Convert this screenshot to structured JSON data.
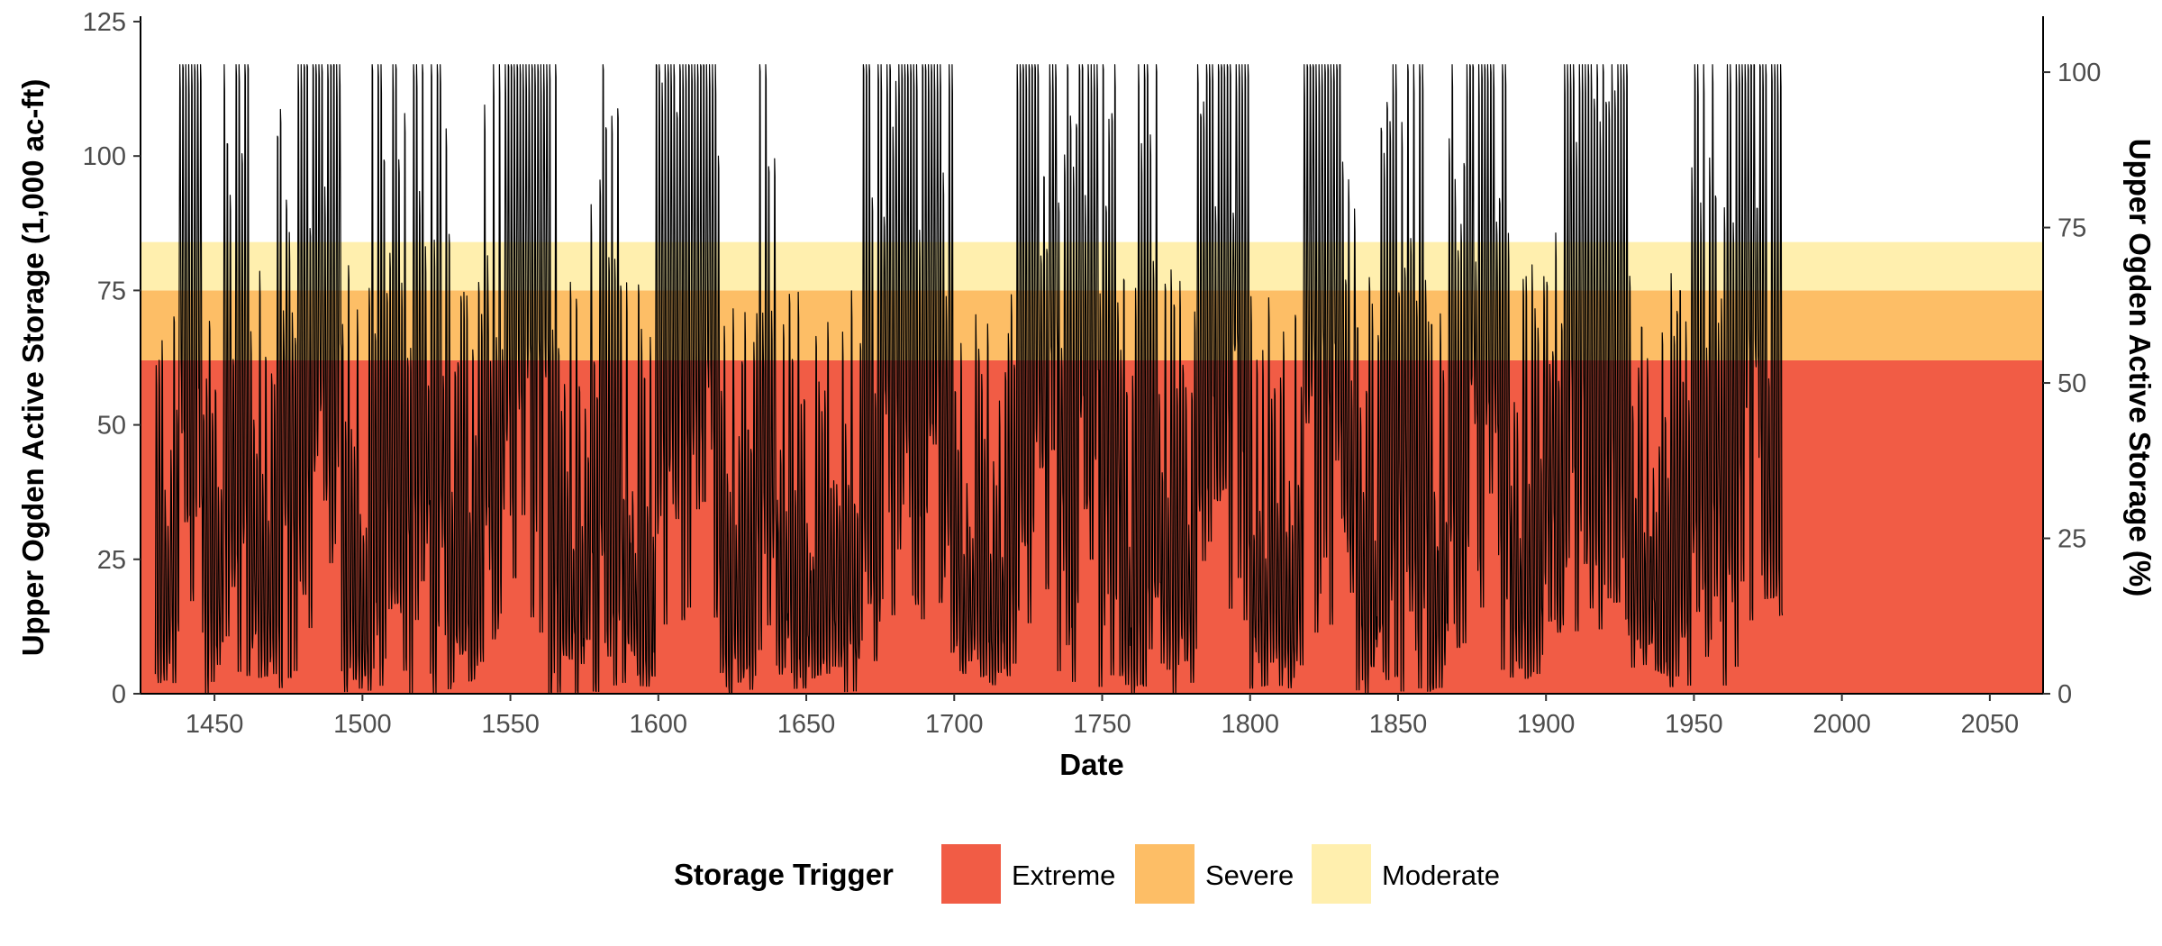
{
  "chart_data": {
    "type": "area",
    "xlabel": "Date",
    "ylabel": "Upper Ogden Active Storage (1,000 ac-ft)",
    "y2label": "Upper Ogden Active Storage (%)",
    "xlim": [
      1425,
      2068
    ],
    "ylim": [
      0,
      126
    ],
    "y2lim": [
      0,
      109
    ],
    "x_ticks": [
      1450,
      1500,
      1550,
      1600,
      1650,
      1700,
      1750,
      1800,
      1850,
      1900,
      1950,
      2000,
      2050
    ],
    "y_ticks": [
      0,
      25,
      50,
      75,
      100,
      125
    ],
    "y2_ticks": [
      0,
      25,
      50,
      75,
      100
    ],
    "grid": false,
    "legend": {
      "title": "Storage Trigger",
      "position": "bottom",
      "entries": [
        {
          "name": "Extreme",
          "color": "#F15C45"
        },
        {
          "name": "Severe",
          "color": "#FDBE66"
        },
        {
          "name": "Moderate",
          "color": "#FFEFAE"
        }
      ]
    },
    "bands": [
      {
        "name": "Extreme",
        "y0": 0,
        "y1": 62,
        "color": "#F15C45"
      },
      {
        "name": "Severe",
        "y0": 62,
        "y1": 75,
        "color": "#FDBE66"
      },
      {
        "name": "Moderate",
        "y0": 75,
        "y1": 84,
        "color": "#FFEFAE"
      }
    ],
    "series": {
      "x_start": 1430,
      "x_end": 1980,
      "y_max": 117,
      "y_min": 0,
      "line_color": "#000000",
      "note": "annual storage cycles: 7 shown values per year in 1,000 ac-ft",
      "dry_periods": [
        [
          1430,
          1437
        ],
        [
          1446,
          1452
        ],
        [
          1462,
          1470
        ],
        [
          1492,
          1502
        ],
        [
          1530,
          1540
        ],
        [
          1566,
          1576
        ],
        [
          1588,
          1598
        ],
        [
          1620,
          1632
        ],
        [
          1640,
          1668
        ],
        [
          1700,
          1718
        ],
        [
          1756,
          1760
        ],
        [
          1770,
          1782
        ],
        [
          1800,
          1816
        ],
        [
          1836,
          1842
        ],
        [
          1860,
          1866
        ],
        [
          1888,
          1898
        ],
        [
          1928,
          1948
        ]
      ],
      "wet_periods": [
        [
          1438,
          1445
        ],
        [
          1478,
          1492
        ],
        [
          1548,
          1562
        ],
        [
          1600,
          1620
        ],
        [
          1675,
          1694
        ],
        [
          1724,
          1734
        ],
        [
          1742,
          1748
        ],
        [
          1782,
          1798
        ],
        [
          1818,
          1830
        ],
        [
          1874,
          1884
        ],
        [
          1908,
          1926
        ],
        [
          1965,
          1972
        ]
      ]
    }
  }
}
